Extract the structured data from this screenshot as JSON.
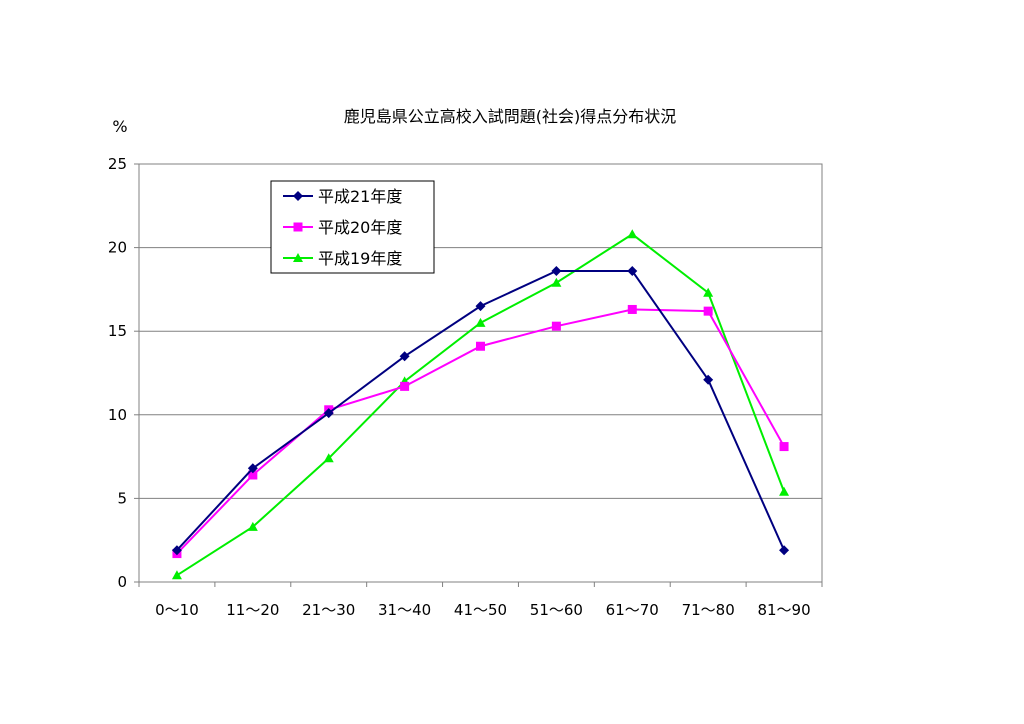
{
  "chart_data": {
    "type": "line",
    "title": "鹿児島県公立高校入試問題(社会)得点分布状況",
    "ylabel": "%",
    "xlabel": "",
    "categories": [
      "0〜10",
      "11〜20",
      "21〜30",
      "31〜40",
      "41〜50",
      "51〜60",
      "61〜70",
      "71〜80",
      "81〜90"
    ],
    "ylim": [
      0,
      25
    ],
    "yticks": [
      0,
      5,
      10,
      15,
      20,
      25
    ],
    "grid": true,
    "legend_position": "top-left",
    "series": [
      {
        "name": "平成21年度",
        "color": "#000080",
        "marker": "diamond",
        "values": [
          1.9,
          6.8,
          10.1,
          13.5,
          16.5,
          18.6,
          18.6,
          12.1,
          1.9
        ]
      },
      {
        "name": "平成20年度",
        "color": "#ff00ff",
        "marker": "square",
        "values": [
          1.7,
          6.4,
          10.3,
          11.7,
          14.1,
          15.3,
          16.3,
          16.2,
          8.1
        ]
      },
      {
        "name": "平成19年度",
        "color": "#00ee00",
        "marker": "triangle",
        "values": [
          0.4,
          3.3,
          7.4,
          12.0,
          15.5,
          17.9,
          20.8,
          17.3,
          5.4
        ]
      }
    ]
  }
}
